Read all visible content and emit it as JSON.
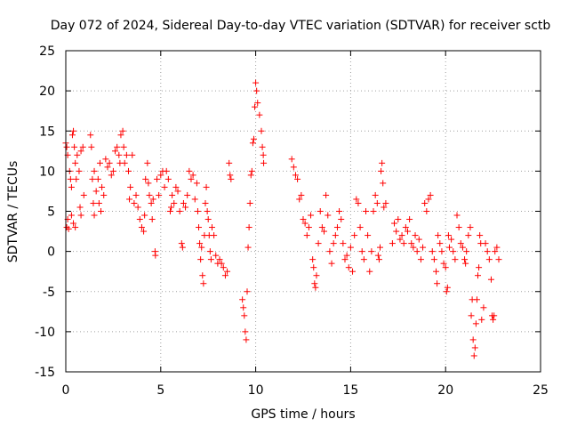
{
  "chart_data": {
    "type": "scatter",
    "title": "Day 072 of 2024, Sidereal Day-to-day VTEC variation (SDTVAR) for receiver sctb",
    "xlabel": "GPS time / hours",
    "ylabel": "SDTVAR / TECUs",
    "xlim": [
      0,
      25
    ],
    "ylim": [
      -15,
      25
    ],
    "xticks": [
      0,
      5,
      10,
      15,
      20,
      25
    ],
    "yticks": [
      -15,
      -10,
      -5,
      0,
      5,
      10,
      15,
      20,
      25
    ],
    "xtick_labels": [
      "0",
      "5",
      "10",
      "15",
      "20",
      "25"
    ],
    "ytick_labels": [
      "-15",
      "-10",
      "-5",
      "0",
      "5",
      "10",
      "15",
      "20",
      "25"
    ],
    "grid": true,
    "marker": "+",
    "series": [
      {
        "name": "sctb SDTVAR",
        "color": "#ff0000",
        "points": [
          [
            0.0,
            13.5
          ],
          [
            0.05,
            13.0
          ],
          [
            0.1,
            12.0
          ],
          [
            0.05,
            3.0
          ],
          [
            0.1,
            4.0
          ],
          [
            0.15,
            2.8
          ],
          [
            0.2,
            10.0
          ],
          [
            0.25,
            9.0
          ],
          [
            0.3,
            8.0
          ],
          [
            0.3,
            4.5
          ],
          [
            0.35,
            14.5
          ],
          [
            0.4,
            15.0
          ],
          [
            0.45,
            13.0
          ],
          [
            0.4,
            3.5
          ],
          [
            0.5,
            11.0
          ],
          [
            0.5,
            3.0
          ],
          [
            0.55,
            9.0
          ],
          [
            0.6,
            12.0
          ],
          [
            0.7,
            10.0
          ],
          [
            0.75,
            5.5
          ],
          [
            0.8,
            4.5
          ],
          [
            0.8,
            12.5
          ],
          [
            0.9,
            13.0
          ],
          [
            0.95,
            7.0
          ],
          [
            1.3,
            14.5
          ],
          [
            1.35,
            13.0
          ],
          [
            1.4,
            9.0
          ],
          [
            1.45,
            6.0
          ],
          [
            1.5,
            10.0
          ],
          [
            1.5,
            4.5
          ],
          [
            1.6,
            7.5
          ],
          [
            1.7,
            9.0
          ],
          [
            1.75,
            6.0
          ],
          [
            1.8,
            11.0
          ],
          [
            1.85,
            5.0
          ],
          [
            1.9,
            8.0
          ],
          [
            2.0,
            7.0
          ],
          [
            2.1,
            11.5
          ],
          [
            2.2,
            10.5
          ],
          [
            2.3,
            11.0
          ],
          [
            2.4,
            9.5
          ],
          [
            2.5,
            10.0
          ],
          [
            2.6,
            12.5
          ],
          [
            2.7,
            13.0
          ],
          [
            2.8,
            12.0
          ],
          [
            2.85,
            11.0
          ],
          [
            2.9,
            14.5
          ],
          [
            3.0,
            15.0
          ],
          [
            3.05,
            13.0
          ],
          [
            3.1,
            11.0
          ],
          [
            3.2,
            12.0
          ],
          [
            3.3,
            10.0
          ],
          [
            3.35,
            6.5
          ],
          [
            3.4,
            8.0
          ],
          [
            3.5,
            12.0
          ],
          [
            3.6,
            6.0
          ],
          [
            3.7,
            7.0
          ],
          [
            3.8,
            5.5
          ],
          [
            3.9,
            4.0
          ],
          [
            4.0,
            3.0
          ],
          [
            4.1,
            2.5
          ],
          [
            4.15,
            4.5
          ],
          [
            4.2,
            9.0
          ],
          [
            4.3,
            11.0
          ],
          [
            4.35,
            8.5
          ],
          [
            4.4,
            7.0
          ],
          [
            4.5,
            6.0
          ],
          [
            4.55,
            4.0
          ],
          [
            4.6,
            6.5
          ],
          [
            4.7,
            0.0
          ],
          [
            4.72,
            -0.5
          ],
          [
            4.8,
            9.0
          ],
          [
            4.9,
            7.0
          ],
          [
            5.0,
            9.5
          ],
          [
            5.1,
            10.0
          ],
          [
            5.2,
            8.0
          ],
          [
            5.3,
            10.0
          ],
          [
            5.4,
            9.0
          ],
          [
            5.5,
            5.0
          ],
          [
            5.55,
            5.5
          ],
          [
            5.6,
            7.0
          ],
          [
            5.7,
            6.0
          ],
          [
            5.8,
            8.0
          ],
          [
            5.9,
            7.5
          ],
          [
            6.0,
            5.0
          ],
          [
            6.1,
            1.0
          ],
          [
            6.15,
            0.5
          ],
          [
            6.2,
            6.0
          ],
          [
            6.3,
            5.5
          ],
          [
            6.4,
            7.0
          ],
          [
            6.5,
            10.0
          ],
          [
            6.6,
            9.0
          ],
          [
            6.7,
            9.5
          ],
          [
            6.8,
            6.5
          ],
          [
            6.9,
            8.5
          ],
          [
            6.95,
            5.0
          ],
          [
            7.0,
            3.0
          ],
          [
            7.05,
            1.0
          ],
          [
            7.1,
            -1.0
          ],
          [
            7.15,
            0.5
          ],
          [
            7.2,
            -3.0
          ],
          [
            7.25,
            -4.0
          ],
          [
            7.3,
            2.0
          ],
          [
            7.35,
            6.0
          ],
          [
            7.4,
            8.0
          ],
          [
            7.45,
            5.0
          ],
          [
            7.5,
            4.0
          ],
          [
            7.55,
            2.0
          ],
          [
            7.6,
            0.0
          ],
          [
            7.65,
            -1.0
          ],
          [
            7.7,
            3.0
          ],
          [
            7.8,
            2.0
          ],
          [
            7.9,
            -0.5
          ],
          [
            8.0,
            -1.5
          ],
          [
            8.1,
            -1.0
          ],
          [
            8.2,
            -1.5
          ],
          [
            8.3,
            -2.0
          ],
          [
            8.4,
            -3.0
          ],
          [
            8.5,
            -2.5
          ],
          [
            8.6,
            11.0
          ],
          [
            8.65,
            9.5
          ],
          [
            8.7,
            9.0
          ],
          [
            9.3,
            -6.0
          ],
          [
            9.35,
            -7.0
          ],
          [
            9.4,
            -8.0
          ],
          [
            9.45,
            -10.0
          ],
          [
            9.5,
            -11.0
          ],
          [
            9.55,
            -5.0
          ],
          [
            9.6,
            0.5
          ],
          [
            9.65,
            3.0
          ],
          [
            9.7,
            6.0
          ],
          [
            9.75,
            9.5
          ],
          [
            9.8,
            10.0
          ],
          [
            9.85,
            13.5
          ],
          [
            9.9,
            14.0
          ],
          [
            9.95,
            18.0
          ],
          [
            10.0,
            21.0
          ],
          [
            10.05,
            20.0
          ],
          [
            10.1,
            18.5
          ],
          [
            10.2,
            17.0
          ],
          [
            10.3,
            15.0
          ],
          [
            10.35,
            13.0
          ],
          [
            10.4,
            12.0
          ],
          [
            10.42,
            11.0
          ],
          [
            11.9,
            11.5
          ],
          [
            12.0,
            10.5
          ],
          [
            12.1,
            9.5
          ],
          [
            12.2,
            9.0
          ],
          [
            12.3,
            6.5
          ],
          [
            12.4,
            7.0
          ],
          [
            12.5,
            4.0
          ],
          [
            12.6,
            3.5
          ],
          [
            12.7,
            2.0
          ],
          [
            12.8,
            3.0
          ],
          [
            12.9,
            4.5
          ],
          [
            13.0,
            -1.0
          ],
          [
            13.05,
            -2.0
          ],
          [
            13.1,
            -4.0
          ],
          [
            13.15,
            -4.5
          ],
          [
            13.2,
            -3.0
          ],
          [
            13.3,
            1.0
          ],
          [
            13.4,
            5.0
          ],
          [
            13.5,
            3.0
          ],
          [
            13.6,
            2.5
          ],
          [
            13.7,
            7.0
          ],
          [
            13.8,
            4.5
          ],
          [
            13.9,
            0.0
          ],
          [
            14.0,
            -1.5
          ],
          [
            14.1,
            1.0
          ],
          [
            14.2,
            2.0
          ],
          [
            14.3,
            3.0
          ],
          [
            14.4,
            5.0
          ],
          [
            14.5,
            4.0
          ],
          [
            14.6,
            1.0
          ],
          [
            14.7,
            -1.0
          ],
          [
            14.8,
            -0.5
          ],
          [
            14.9,
            -2.0
          ],
          [
            15.0,
            0.5
          ],
          [
            15.1,
            -2.5
          ],
          [
            15.2,
            2.0
          ],
          [
            15.3,
            6.5
          ],
          [
            15.4,
            6.0
          ],
          [
            15.5,
            3.0
          ],
          [
            15.6,
            0.0
          ],
          [
            15.7,
            -1.0
          ],
          [
            15.8,
            5.0
          ],
          [
            15.9,
            2.0
          ],
          [
            16.0,
            -2.5
          ],
          [
            16.1,
            0.0
          ],
          [
            16.2,
            5.0
          ],
          [
            16.3,
            7.0
          ],
          [
            16.4,
            6.0
          ],
          [
            16.45,
            -0.5
          ],
          [
            16.5,
            -1.0
          ],
          [
            16.55,
            0.5
          ],
          [
            16.6,
            10.0
          ],
          [
            16.65,
            11.0
          ],
          [
            16.7,
            8.5
          ],
          [
            16.75,
            5.5
          ],
          [
            16.85,
            6.0
          ],
          [
            17.2,
            1.0
          ],
          [
            17.3,
            3.5
          ],
          [
            17.4,
            2.5
          ],
          [
            17.5,
            4.0
          ],
          [
            17.6,
            1.5
          ],
          [
            17.7,
            2.0
          ],
          [
            17.8,
            1.0
          ],
          [
            17.9,
            3.0
          ],
          [
            18.0,
            2.5
          ],
          [
            18.1,
            4.0
          ],
          [
            18.2,
            1.0
          ],
          [
            18.3,
            0.5
          ],
          [
            18.4,
            2.0
          ],
          [
            18.5,
            0.0
          ],
          [
            18.6,
            1.5
          ],
          [
            18.7,
            -1.0
          ],
          [
            18.8,
            0.5
          ],
          [
            18.9,
            6.0
          ],
          [
            19.0,
            5.0
          ],
          [
            19.1,
            6.5
          ],
          [
            19.2,
            7.0
          ],
          [
            19.3,
            0.0
          ],
          [
            19.4,
            -1.0
          ],
          [
            19.5,
            -2.5
          ],
          [
            19.55,
            -4.0
          ],
          [
            19.6,
            2.0
          ],
          [
            19.7,
            1.0
          ],
          [
            19.8,
            0.0
          ],
          [
            19.9,
            -1.5
          ],
          [
            20.0,
            -2.0
          ],
          [
            20.05,
            -5.0
          ],
          [
            20.1,
            -4.5
          ],
          [
            20.15,
            2.0
          ],
          [
            20.2,
            0.5
          ],
          [
            20.3,
            1.5
          ],
          [
            20.4,
            0.0
          ],
          [
            20.5,
            -1.0
          ],
          [
            20.6,
            4.5
          ],
          [
            20.7,
            3.0
          ],
          [
            20.8,
            1.0
          ],
          [
            20.9,
            0.5
          ],
          [
            21.0,
            -1.0
          ],
          [
            21.05,
            -1.5
          ],
          [
            21.1,
            0.0
          ],
          [
            21.2,
            2.0
          ],
          [
            21.3,
            3.0
          ],
          [
            21.35,
            -8.0
          ],
          [
            21.4,
            -6.0
          ],
          [
            21.45,
            -11.0
          ],
          [
            21.5,
            -13.0
          ],
          [
            21.55,
            -12.0
          ],
          [
            21.6,
            -9.0
          ],
          [
            21.65,
            -6.0
          ],
          [
            21.7,
            -3.0
          ],
          [
            21.75,
            -2.0
          ],
          [
            21.8,
            2.0
          ],
          [
            21.85,
            1.0
          ],
          [
            21.9,
            -8.5
          ],
          [
            22.0,
            -7.0
          ],
          [
            22.1,
            1.0
          ],
          [
            22.2,
            0.0
          ],
          [
            22.3,
            -1.0
          ],
          [
            22.4,
            -3.5
          ],
          [
            22.45,
            -8.0
          ],
          [
            22.5,
            -8.5
          ],
          [
            22.55,
            -8.0
          ],
          [
            22.6,
            0.0
          ],
          [
            22.7,
            0.5
          ],
          [
            22.8,
            -1.0
          ]
        ]
      }
    ]
  }
}
